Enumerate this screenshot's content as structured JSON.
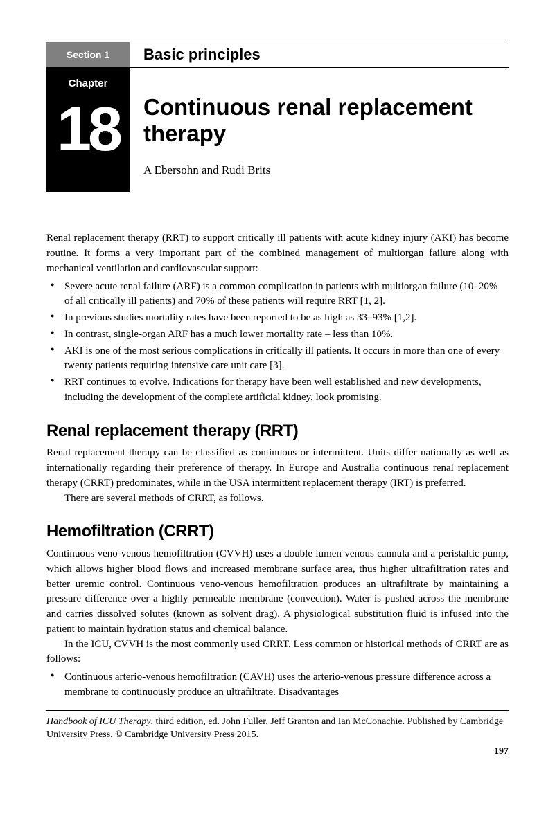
{
  "section": {
    "label": "Section 1",
    "title": "Basic principles"
  },
  "chapter": {
    "label": "Chapter",
    "number": "18",
    "title": "Continuous renal replacement therapy",
    "authors": "A Ebersohn and Rudi Brits"
  },
  "intro": "Renal replacement therapy (RRT) to support critically ill patients with acute kidney injury (AKI) has become routine. It forms a very important part of the combined management of multiorgan failure along with mechanical ventilation and cardiovascular support:",
  "intro_bullets": [
    "Severe acute renal failure (ARF) is a common complication in patients with multiorgan failure (10–20% of all critically ill patients) and 70% of these patients will require RRT [1, 2].",
    "In previous studies mortality rates have been reported to be as high as 33–93% [1,2].",
    "In contrast, single-organ ARF has a much lower mortality rate – less than 10%.",
    "AKI is one of the most serious complications in critically ill patients. It occurs in more than one of every twenty patients requiring intensive care unit care [3].",
    "RRT continues to evolve. Indications for therapy have been well established and new developments, including the development of the complete artificial kidney, look promising."
  ],
  "sec1": {
    "heading": "Renal replacement therapy (RRT)",
    "p1": "Renal replacement therapy can be classified as continuous or intermittent. Units differ nationally as well as internationally regarding their preference of therapy. In Europe and Australia continuous renal replacement therapy (CRRT) predominates, while in the USA intermittent replacement therapy (IRT) is preferred.",
    "p2": "There are several methods of CRRT, as follows."
  },
  "sec2": {
    "heading": "Hemofiltration (CRRT)",
    "p1": "Continuous veno-venous hemofiltration (CVVH) uses a double lumen venous cannula and a peristaltic pump, which allows higher blood flows and increased membrane surface area, thus higher ultrafiltration rates and better uremic control. Continuous veno-venous hemofiltration produces an ultrafiltrate by maintaining a pressure difference over a highly permeable membrane (convection). Water is pushed across the membrane and carries dissolved solutes (known as solvent drag). A physiological substitution fluid is infused into the patient to maintain hydration status and chemical balance.",
    "p2": "In the ICU, CVVH is the most commonly used CRRT. Less common or historical methods of CRRT are as follows:",
    "bullets": [
      "Continuous arterio-venous hemofiltration (CAVH) uses the arterio-venous pressure difference across a membrane to continuously produce an ultrafiltrate. Disadvantages"
    ]
  },
  "footer": {
    "book_title": "Handbook of ICU Therapy",
    "rest": ", third edition, ed. John Fuller, Jeff Granton and Ian McConachie. Published by Cambridge University Press. © Cambridge University Press 2015."
  },
  "page_number": "197",
  "colors": {
    "section_tab_bg": "#808080",
    "chapter_box_bg": "#000000",
    "text": "#000000",
    "bg": "#ffffff"
  }
}
